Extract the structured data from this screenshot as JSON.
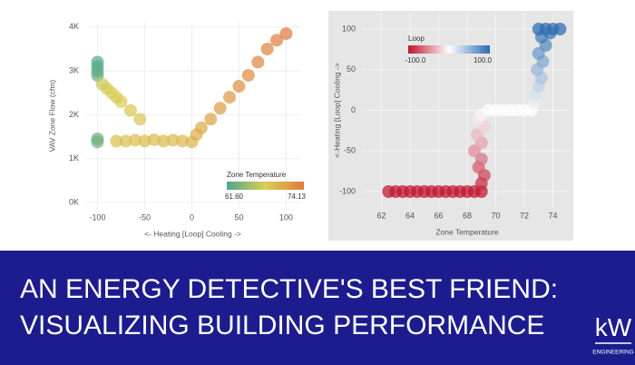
{
  "chart_data": [
    {
      "type": "scatter",
      "xlabel": "<- Heating   [Loop]   Cooling ->",
      "ylabel": "VAV Zone Flow (cfm)",
      "x": [
        -100,
        -100,
        -100,
        -100,
        -100,
        -100,
        -95,
        -90,
        -85,
        -80,
        -75,
        -65,
        -55,
        -80,
        -70,
        -60,
        -50,
        -40,
        -30,
        -20,
        -10,
        0,
        5,
        10,
        20,
        30,
        40,
        50,
        60,
        70,
        80,
        90,
        100
      ],
      "values": [
        3200,
        3100,
        3000,
        2900,
        1450,
        1380,
        2700,
        2600,
        2500,
        2400,
        2300,
        2100,
        1900,
        1400,
        1400,
        1420,
        1400,
        1430,
        1400,
        1420,
        1400,
        1380,
        1550,
        1700,
        1900,
        2150,
        2400,
        2650,
        2900,
        3200,
        3500,
        3700,
        3850
      ],
      "color_values": [
        62,
        62,
        62.2,
        62.5,
        63,
        63.2,
        67,
        67.5,
        67.8,
        68,
        68.2,
        68.5,
        68.5,
        68.8,
        69,
        69,
        69.2,
        69.2,
        69.4,
        69.5,
        69.6,
        69.8,
        70.2,
        70.6,
        71,
        71.5,
        72,
        72.4,
        72.8,
        73.2,
        73.6,
        73.9,
        74.1
      ],
      "xlim": [
        -112,
        114
      ],
      "xticks": [
        -100,
        -50,
        0,
        50,
        100
      ],
      "ylim": [
        -145,
        4100
      ],
      "yticks": [
        {
          "value": 0,
          "label": "0K"
        },
        {
          "value": 1000,
          "label": "1K"
        },
        {
          "value": 2000,
          "label": "2K"
        },
        {
          "value": 3000,
          "label": "3K"
        },
        {
          "value": 4000,
          "label": "4K"
        }
      ],
      "grid": true,
      "background": "#ffffff",
      "colorbar": {
        "title": "Zone Temperature",
        "ticks": [
          {
            "value": 61.6,
            "label": "61.60"
          },
          74.13
        ],
        "colorscale": [
          "#4fa78c",
          "#d9cf55",
          "#e07b3e"
        ]
      }
    },
    {
      "type": "scatter",
      "xlabel": "Zone Temperature",
      "ylabel": "<-Heating   [Loop]   Cooling ->",
      "x": [
        62.5,
        63,
        63.5,
        64,
        64.5,
        65,
        65.5,
        66,
        66.5,
        67,
        67.5,
        68,
        68.5,
        69,
        69,
        69.2,
        68.8,
        69,
        68.5,
        69,
        68.7,
        69.2,
        68.8,
        69,
        69.5,
        70,
        70.5,
        71,
        71.5,
        72,
        72.5,
        72.7,
        72.8,
        73,
        73.2,
        72.9,
        73.3,
        73,
        73.5,
        73.2,
        73,
        73.5,
        74,
        74.5,
        73.8
      ],
      "values": [
        -100,
        -100,
        -100,
        -100,
        -100,
        -100,
        -100,
        -100,
        -100,
        -100,
        -100,
        -100,
        -100,
        -100,
        -90,
        -80,
        -70,
        -60,
        -50,
        -40,
        -30,
        -20,
        -10,
        -5,
        0,
        0,
        0,
        0,
        0,
        0,
        0,
        10,
        20,
        30,
        40,
        50,
        60,
        70,
        80,
        90,
        100,
        100,
        100,
        100,
        95
      ],
      "xlim": [
        60.7,
        75.3
      ],
      "xticks": [
        62,
        64,
        66,
        68,
        70,
        72,
        74
      ],
      "ylim": [
        -119,
        119
      ],
      "yticks": [
        -100,
        -50,
        0,
        50,
        100
      ],
      "grid": true,
      "background": "#e6e6e6",
      "colorbar": {
        "title": "Loop",
        "ticks": [
          {
            "value": -100,
            "label": "-100.0"
          },
          {
            "value": 100,
            "label": "100.0"
          }
        ],
        "colorscale": [
          "#c0152f",
          "#ffffff",
          "#2a6cb0"
        ]
      }
    }
  ],
  "banner": {
    "lines": [
      "AN ENERGY DETECTIVE'S BEST FRIEND:",
      "VISUALIZING BUILDING PERFORMANCE"
    ]
  },
  "logo": {
    "text": "kW",
    "subtext": "ENGINEERING"
  }
}
